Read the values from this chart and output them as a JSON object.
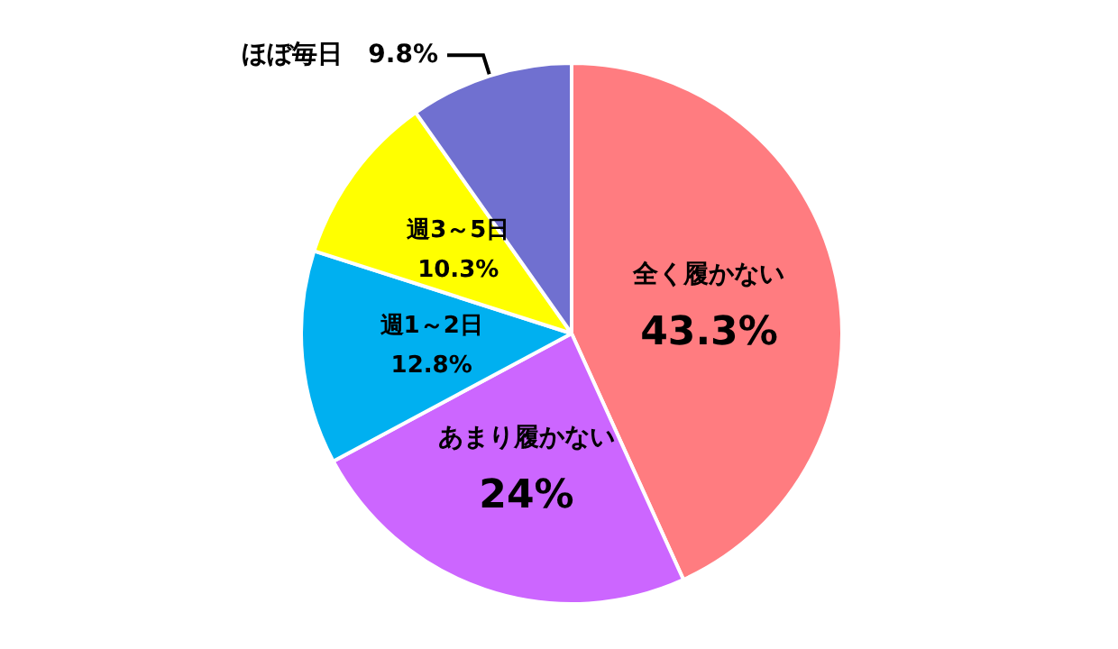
{
  "chart_data": {
    "type": "pie",
    "categories": [
      "全く履かない",
      "あまり履かない",
      "週1～2日",
      "週3～5日",
      "ほぼ毎日"
    ],
    "values": [
      43.3,
      24,
      12.8,
      10.3,
      9.8
    ],
    "value_labels": [
      "43.3%",
      "24%",
      "12.8%",
      "10.3%",
      "9.8%"
    ],
    "colors": [
      "#ff7c80",
      "#cc66ff",
      "#00b0f0",
      "#ffff00",
      "#7070d0"
    ],
    "legend": false
  }
}
